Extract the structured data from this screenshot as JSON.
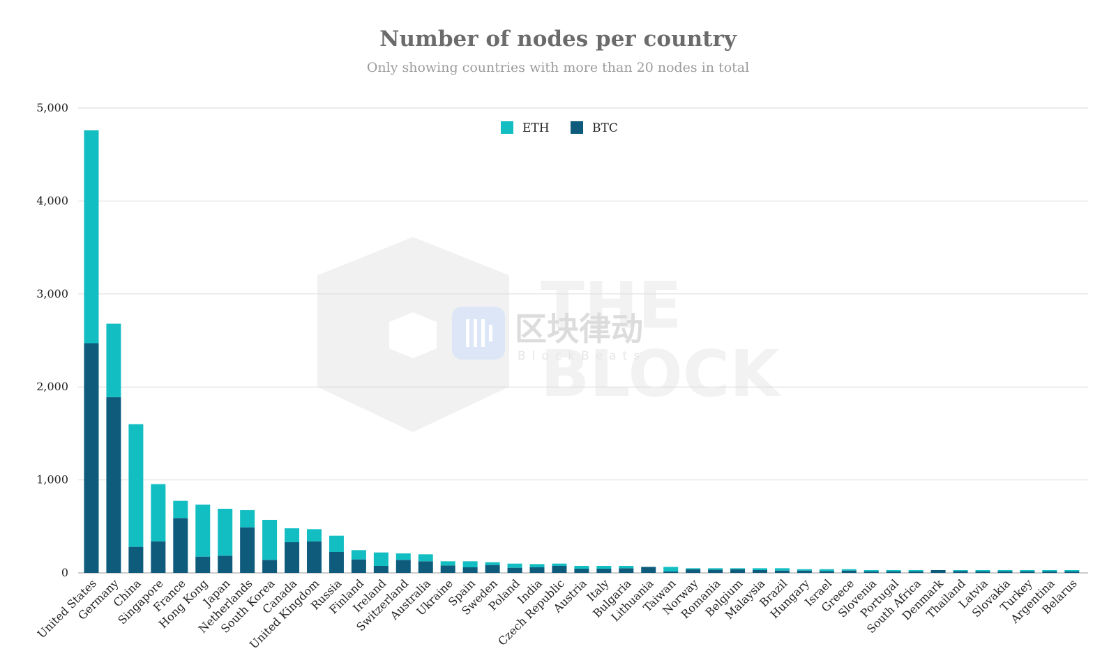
{
  "title": "Number of nodes per country",
  "subtitle": "Only showing countries with more than 20 nodes in total",
  "watermark": {
    "brand_cn": "区块律动",
    "brand_en": "BlockBeats",
    "mark_line1": "THE",
    "mark_line2": "BLOCK"
  },
  "colors": {
    "ETH": "#13bec3",
    "BTC": "#0e5b7c",
    "grid": "#d9d9d9"
  },
  "chart_data": {
    "type": "bar",
    "stacked": true,
    "title": "Number of nodes per country",
    "subtitle": "Only showing countries with more than 20 nodes in total",
    "ylim": [
      0,
      5000
    ],
    "yticks": [
      0,
      1000,
      2000,
      3000,
      4000,
      5000
    ],
    "ytick_labels": [
      "0",
      "1,000",
      "2,000",
      "3,000",
      "4,000",
      "5,000"
    ],
    "grid": true,
    "legend_position": "top-center",
    "categories": [
      "United States",
      "Germany",
      "China",
      "Singapore",
      "France",
      "Hong Kong",
      "Japan",
      "Netherlands",
      "South Korea",
      "Canada",
      "United Kingdom",
      "Russia",
      "Finland",
      "Ireland",
      "Switzerland",
      "Australia",
      "Ukraine",
      "Spain",
      "Sweden",
      "Poland",
      "India",
      "Czech Republic",
      "Austria",
      "Italy",
      "Bulgaria",
      "Lithuania",
      "Taiwan",
      "Norway",
      "Romania",
      "Belgium",
      "Malaysia",
      "Brazil",
      "Hungary",
      "Israel",
      "Greece",
      "Slovenia",
      "Portugal",
      "South Africa",
      "Denmark",
      "Thailand",
      "Latvia",
      "Slovakia",
      "Turkey",
      "Argentina",
      "Belarus"
    ],
    "series": [
      {
        "name": "BTC",
        "values": [
          2470,
          1890,
          280,
          340,
          590,
          175,
          185,
          490,
          140,
          330,
          340,
          225,
          145,
          75,
          140,
          125,
          80,
          60,
          85,
          55,
          60,
          75,
          45,
          45,
          50,
          65,
          15,
          40,
          35,
          40,
          30,
          25,
          25,
          20,
          25,
          15,
          15,
          15,
          30,
          20,
          15,
          15,
          15,
          15,
          15
        ]
      },
      {
        "name": "ETH",
        "values": [
          2290,
          790,
          1320,
          615,
          185,
          560,
          505,
          185,
          430,
          150,
          130,
          175,
          100,
          145,
          70,
          75,
          45,
          65,
          30,
          45,
          35,
          25,
          30,
          30,
          25,
          0,
          50,
          10,
          15,
          10,
          20,
          25,
          15,
          20,
          15,
          15,
          15,
          15,
          0,
          10,
          15,
          15,
          15,
          15,
          15
        ]
      }
    ]
  },
  "legend": [
    {
      "name": "ETH",
      "color": "#13bec3"
    },
    {
      "name": "BTC",
      "color": "#0e5b7c"
    }
  ]
}
